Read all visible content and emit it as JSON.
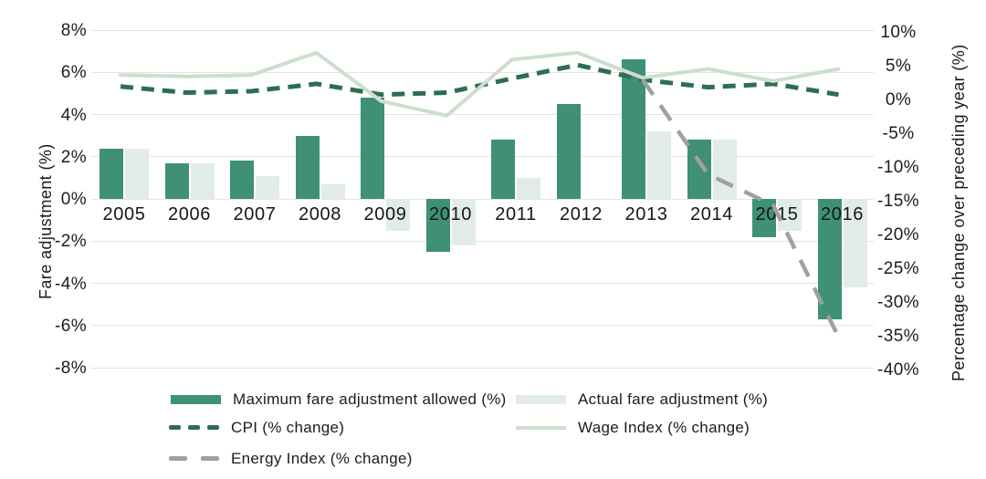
{
  "chart_data": {
    "type": "combo-bar-line",
    "title": "",
    "categories": [
      "2005",
      "2006",
      "2007",
      "2008",
      "2009",
      "2010",
      "2011",
      "2012",
      "2013",
      "2014",
      "2015",
      "2016"
    ],
    "left_axis": {
      "label": "Fare adjustment (%)",
      "ticks": [
        "8%",
        "6%",
        "4%",
        "2%",
        "0%",
        "-2%",
        "-4%",
        "-6%",
        "-8%"
      ],
      "tick_values": [
        8,
        6,
        4,
        2,
        0,
        -2,
        -4,
        -6,
        -8
      ],
      "range": [
        -8,
        8
      ],
      "grid": true
    },
    "right_axis": {
      "label": "Percentage change over preceding year (%)",
      "ticks": [
        "10%",
        "5%",
        "0%",
        "-5%",
        "-10%",
        "-15%",
        "-20%",
        "-25%",
        "-30%",
        "-35%",
        "-40%"
      ],
      "tick_values": [
        10,
        5,
        0,
        -5,
        -10,
        -15,
        -20,
        -25,
        -30,
        -35,
        -40
      ],
      "range": [
        -40,
        10
      ],
      "grid": false
    },
    "series": [
      {
        "name": "Maximum fare adjustment allowed (%)",
        "type": "bar",
        "axis": "left",
        "color": "#3f9077",
        "values": [
          2.4,
          1.7,
          1.8,
          3.0,
          4.8,
          -2.5,
          2.8,
          4.5,
          6.6,
          2.8,
          -1.8,
          -5.7
        ]
      },
      {
        "name": "Actual fare adjustment (%)",
        "type": "bar",
        "axis": "left",
        "color": "#e2ece6",
        "values": [
          2.4,
          1.7,
          1.1,
          0.7,
          -1.5,
          -2.2,
          1.0,
          null,
          3.2,
          2.8,
          -1.5,
          -4.2
        ]
      },
      {
        "name": "CPI (% change)",
        "type": "line",
        "dash": "14 9",
        "axis": "right",
        "color": "#2d6e51",
        "width": 5,
        "values": [
          1.9,
          1.0,
          1.2,
          2.3,
          0.7,
          1.0,
          3.1,
          5.1,
          2.9,
          1.8,
          2.3,
          0.7
        ]
      },
      {
        "name": "Wage Index (% change)",
        "type": "line",
        "dash": null,
        "axis": "right",
        "color": "#cddecd",
        "width": 4,
        "values": [
          3.6,
          3.4,
          3.6,
          6.9,
          -0.3,
          -2.4,
          5.9,
          6.9,
          3.2,
          4.5,
          2.7,
          4.5
        ]
      },
      {
        "name": "Energy Index (% change)",
        "type": "line",
        "dash": "20 14",
        "axis": "right",
        "color": "#a0a0a3",
        "width": 4.5,
        "values": [
          null,
          null,
          null,
          null,
          null,
          null,
          null,
          null,
          2.9,
          -11.1,
          -15.7,
          -35.2
        ]
      }
    ],
    "legend_position": "bottom"
  },
  "legend": {
    "items": [
      {
        "label": "Maximum fare adjustment allowed (%)",
        "swatch": "bar-dark"
      },
      {
        "label": "Actual fare adjustment (%)",
        "swatch": "bar-light"
      },
      {
        "label": "CPI (% change)",
        "swatch": "dash-darkgreen"
      },
      {
        "label": "Wage Index (% change)",
        "swatch": "line-lightgreen"
      },
      {
        "label": "Energy Index (% change)",
        "swatch": "dash-gray"
      }
    ]
  },
  "colors": {
    "bar_max": "#3f9077",
    "bar_actual": "#e2ece6",
    "cpi_line": "#2d6e51",
    "wage_line": "#cddecd",
    "energy_line": "#a0a0a3",
    "gridline": "#e4e4e4",
    "text": "#1c1c1c"
  }
}
